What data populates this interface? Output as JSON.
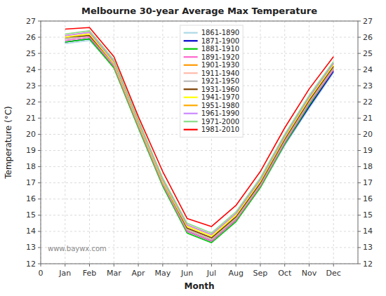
{
  "chart_data": {
    "type": "line",
    "title": "Melbourne 30-year Average Max Temperature",
    "xlabel": "Month",
    "ylabel": "Temperature (°C)",
    "annotations": [
      "www.baywx.com"
    ],
    "x": [
      1,
      2,
      3,
      4,
      5,
      6,
      7,
      8,
      9,
      10,
      11,
      12
    ],
    "xlim": [
      0,
      13
    ],
    "xticks": [
      {
        "value": 0,
        "label": "0"
      },
      {
        "value": 1,
        "label": "Jan"
      },
      {
        "value": 2,
        "label": "Feb"
      },
      {
        "value": 3,
        "label": "Mar"
      },
      {
        "value": 4,
        "label": "Apr"
      },
      {
        "value": 5,
        "label": "May"
      },
      {
        "value": 6,
        "label": "Jun"
      },
      {
        "value": 7,
        "label": "Jul"
      },
      {
        "value": 8,
        "label": "Aug"
      },
      {
        "value": 9,
        "label": "Sep"
      },
      {
        "value": 10,
        "label": "Oct"
      },
      {
        "value": 11,
        "label": "Nov"
      },
      {
        "value": 12,
        "label": "Dec"
      }
    ],
    "ylim": [
      12,
      27
    ],
    "yticks": [
      12,
      13,
      14,
      15,
      16,
      17,
      18,
      19,
      20,
      21,
      22,
      23,
      24,
      25,
      26,
      27
    ],
    "y2lim": [
      12,
      27
    ],
    "y2ticks": [
      12,
      13,
      14,
      15,
      16,
      17,
      18,
      19,
      20,
      21,
      22,
      23,
      24,
      25,
      26,
      27
    ],
    "grid": true,
    "legend": "upper center",
    "series": [
      {
        "name": "1861-1890",
        "color": "#add8e6",
        "values": [
          25.6,
          25.8,
          24.2,
          20.4,
          16.8,
          13.9,
          13.3,
          14.6,
          16.7,
          19.3,
          21.6,
          23.8
        ]
      },
      {
        "name": "1871-1900",
        "color": "#0000cc",
        "values": [
          25.7,
          25.9,
          24.2,
          20.5,
          16.9,
          14.0,
          13.4,
          14.7,
          16.8,
          19.4,
          21.7,
          23.9
        ]
      },
      {
        "name": "1881-1910",
        "color": "#00cc00",
        "values": [
          25.7,
          25.9,
          24.1,
          20.4,
          16.8,
          13.9,
          13.3,
          14.6,
          16.7,
          19.4,
          21.8,
          24.0
        ]
      },
      {
        "name": "1891-1920",
        "color": "#ff66cc",
        "values": [
          25.8,
          26.0,
          24.2,
          20.5,
          16.9,
          14.0,
          13.4,
          14.7,
          16.8,
          19.5,
          21.9,
          24.0
        ]
      },
      {
        "name": "1901-1930",
        "color": "#ff9900",
        "values": [
          25.9,
          26.1,
          24.3,
          20.6,
          17.0,
          14.1,
          13.5,
          14.8,
          16.9,
          19.6,
          22.0,
          24.1
        ]
      },
      {
        "name": "1911-1940",
        "color": "#ffbbaa",
        "values": [
          26.0,
          26.2,
          24.4,
          20.7,
          17.1,
          14.2,
          13.6,
          14.9,
          17.0,
          19.7,
          22.1,
          24.2
        ]
      },
      {
        "name": "1921-1950",
        "color": "#bbbbbb",
        "values": [
          25.9,
          26.1,
          24.3,
          20.6,
          17.0,
          14.1,
          13.5,
          14.8,
          16.9,
          19.6,
          22.0,
          24.1
        ]
      },
      {
        "name": "1931-1960",
        "color": "#7b3f00",
        "values": [
          26.0,
          26.1,
          24.4,
          20.7,
          17.1,
          14.2,
          13.6,
          14.9,
          17.0,
          19.7,
          22.1,
          24.2
        ]
      },
      {
        "name": "1941-1970",
        "color": "#ffff00",
        "values": [
          26.0,
          26.2,
          24.4,
          20.7,
          17.1,
          14.3,
          13.7,
          15.0,
          17.1,
          19.8,
          22.2,
          24.3
        ]
      },
      {
        "name": "1951-1980",
        "color": "#ffaa00",
        "values": [
          26.1,
          26.3,
          24.5,
          20.8,
          17.2,
          14.4,
          13.8,
          15.1,
          17.2,
          19.9,
          22.3,
          24.4
        ]
      },
      {
        "name": "1961-1990",
        "color": "#cc88ff",
        "values": [
          26.1,
          26.3,
          24.5,
          20.8,
          17.2,
          14.4,
          13.8,
          15.1,
          17.2,
          19.9,
          22.3,
          24.4
        ]
      },
      {
        "name": "1971-2000",
        "color": "#88dd88",
        "values": [
          26.2,
          26.4,
          24.6,
          20.9,
          17.3,
          14.5,
          13.9,
          15.2,
          17.3,
          20.0,
          22.4,
          24.5
        ]
      },
      {
        "name": "1981-2010",
        "color": "#ff0000",
        "values": [
          26.5,
          26.6,
          24.8,
          21.1,
          17.7,
          14.8,
          14.3,
          15.6,
          17.7,
          20.4,
          22.8,
          24.8
        ]
      }
    ]
  }
}
